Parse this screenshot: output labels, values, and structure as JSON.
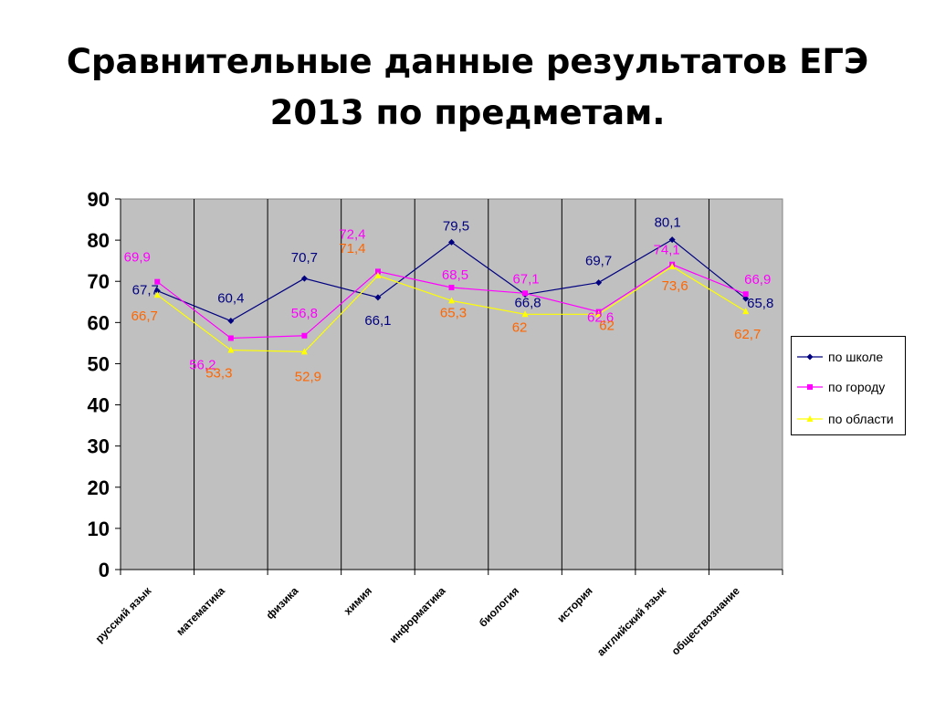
{
  "title": {
    "line1": "Сравнительные данные результатов ЕГЭ",
    "line2": "2013 по предметам."
  },
  "colors": {
    "plot_bg": "#c0c0c0",
    "school": "#000080",
    "city": "#ff00ff",
    "region": "#ffff00",
    "school_label": "#000080",
    "city_label": "#ff00ff",
    "region_label": "#ff6600"
  },
  "chart_data": {
    "type": "line",
    "title": "",
    "xlabel": "",
    "ylabel": "",
    "ylim": [
      0,
      90
    ],
    "yticks": [
      0,
      10,
      20,
      30,
      40,
      50,
      60,
      70,
      80,
      90
    ],
    "grid": "vertical category dividers",
    "legend_position": "right",
    "categories": [
      "русский язык",
      "математика",
      "физика",
      "химия",
      "информатика",
      "биология",
      "история",
      "английский язык",
      "обществознание"
    ],
    "series": [
      {
        "name": "по школе",
        "marker": "diamond",
        "values": [
          67.7,
          60.4,
          70.7,
          66.1,
          79.5,
          66.8,
          69.7,
          80.1,
          65.8
        ],
        "labels": [
          "67,7",
          "60,4",
          "70,7",
          "66,1",
          "79,5",
          "66,8",
          "69,7",
          "80,1",
          "65,8"
        ]
      },
      {
        "name": "по городу",
        "marker": "square",
        "values": [
          69.9,
          56.2,
          56.8,
          72.4,
          68.5,
          67.1,
          62.6,
          74.1,
          66.9
        ],
        "labels": [
          "69,9",
          "56,2",
          "56,8",
          "72,4",
          "68,5",
          "67,1",
          "62,6",
          "74,1",
          "66,9"
        ]
      },
      {
        "name": "по области",
        "marker": "triangle",
        "values": [
          66.7,
          53.3,
          52.9,
          71.4,
          65.3,
          62,
          62,
          73.6,
          62.7
        ],
        "labels": [
          "66,7",
          "53,3",
          "52,9",
          "71,4",
          "65,3",
          "62",
          "62",
          "73,6",
          "62,7"
        ]
      }
    ]
  }
}
